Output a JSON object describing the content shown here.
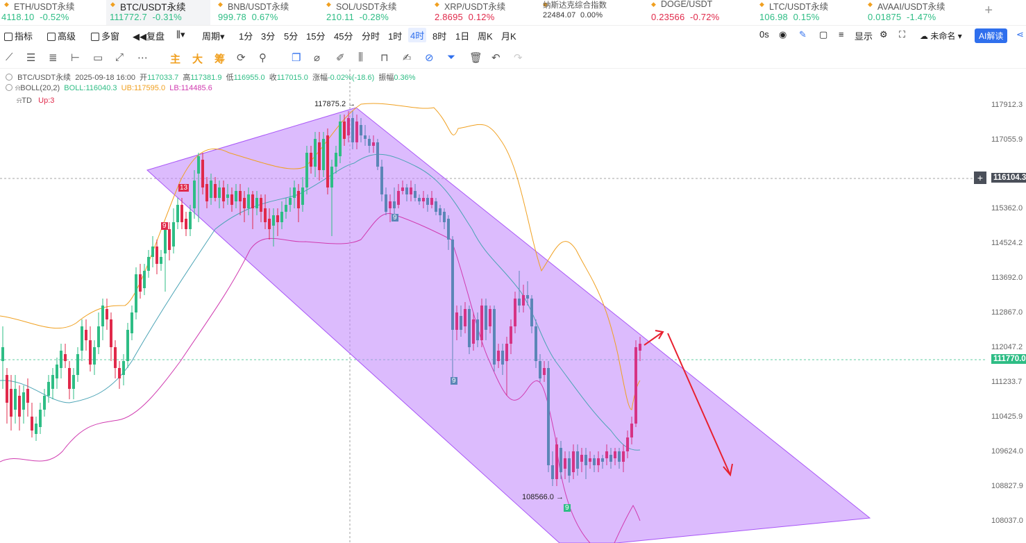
{
  "tickers": [
    {
      "name": "ETH/USDT永续",
      "price": "4118.10",
      "change": "-0.52%",
      "dir": "up"
    },
    {
      "name": "BTC/USDT永续",
      "price": "111772.7",
      "change": "-0.31%",
      "dir": "up"
    },
    {
      "name": "BNB/USDT永续",
      "price": "999.78",
      "change": "0.67%",
      "dir": "up"
    },
    {
      "name": "SOL/USDT永续",
      "price": "210.11",
      "change": "-0.28%",
      "dir": "up"
    },
    {
      "name": "XRP/USDT永续",
      "price": "2.8695",
      "change": "0.12%",
      "dir": "down"
    },
    {
      "name": "纳斯达克综合指数",
      "price": "22484.07",
      "change": "0.00%",
      "dir": "neutral"
    },
    {
      "name": "DOGE/USDT",
      "price": "0.23566",
      "change": "-0.72%",
      "dir": "down"
    },
    {
      "name": "LTC/USDT永续",
      "price": "106.98",
      "change": "0.15%",
      "dir": "up"
    },
    {
      "name": "AVAAI/USDT永续",
      "price": "0.01875",
      "change": "-1.47%",
      "dir": "up"
    }
  ],
  "toolbar": {
    "indicator": "指标",
    "advanced": "高级",
    "multi": "多窗",
    "replay": "复盘",
    "period": "周期",
    "intervals": [
      "1分",
      "3分",
      "5分",
      "15分",
      "45分",
      "分时",
      "1时",
      "4时",
      "8时",
      "1日",
      "周K",
      "月K"
    ],
    "selected_interval": "4时",
    "countdown": "0s",
    "display": "显示",
    "unnamed": "未命名",
    "ai": "AI解读"
  },
  "drawtools": {
    "main": "主",
    "big": "大",
    "chips": "筹"
  },
  "info": {
    "symbol": "BTC/USDT永续",
    "time": "2025-09-18 16:00",
    "open_label": "开",
    "open": "117033.7",
    "high_label": "高",
    "high": "117381.9",
    "low_label": "低",
    "low": "116955.0",
    "close_label": "收",
    "close": "117015.0",
    "chg_label": "涨幅",
    "chg": "-0.02%(-18.6)",
    "amp_label": "振幅",
    "amp": "0.36%"
  },
  "boll": {
    "label": "BOLL(20,2)",
    "mid": "BOLL:116040.3",
    "ub": "UB:117595.0",
    "lb": "LB:114485.6"
  },
  "td": {
    "label": "TD",
    "value": "Up:3"
  },
  "price_axis": [
    "117912.3",
    "117055.9",
    "115362.0",
    "114524.2",
    "113692.0",
    "112867.0",
    "112047.2",
    "111233.7",
    "110425.9",
    "109624.0",
    "108827.9",
    "108037.0"
  ],
  "crosshair_price": "116104.3",
  "current_price": "111770.0",
  "high_marker": "117875.2",
  "low_marker": "108566.0",
  "td_marks": {
    "a": "13",
    "b": "9",
    "c": "9",
    "d": "9",
    "e": "9"
  },
  "colors": {
    "up": "#2ebd85",
    "down": "#e0294a",
    "channel": "#c084fc",
    "arrow": "#e8202f",
    "accent": "#2f6fed"
  }
}
